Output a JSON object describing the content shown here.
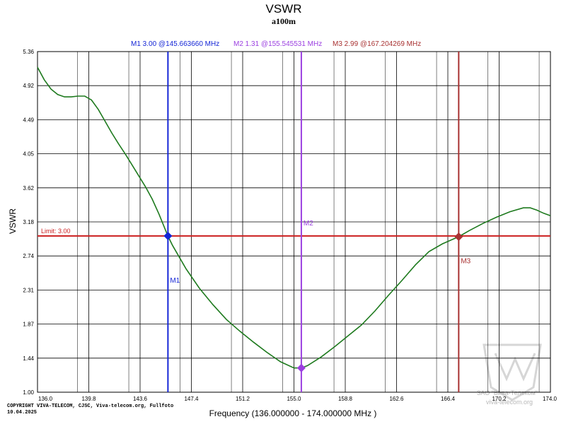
{
  "chart_data": {
    "type": "line",
    "title": "VSWR",
    "subtitle": "a100m",
    "xlabel": "Frequency (136.000000 - 174.000000 MHz )",
    "ylabel": "VSWR",
    "xlim": [
      136.0,
      174.0
    ],
    "ylim": [
      1.0,
      5.36
    ],
    "x_ticks": [
      "136.0",
      "139.8",
      "143.6",
      "147.4",
      "151.2",
      "155.0",
      "158.8",
      "162.6",
      "166.4",
      "170.2",
      "174.0"
    ],
    "y_ticks": [
      "1.00",
      "1.44",
      "1.87",
      "2.31",
      "2.74",
      "3.18",
      "3.62",
      "4.05",
      "4.49",
      "4.92",
      "5.36"
    ],
    "grid": true,
    "series": [
      {
        "name": "VSWR",
        "color": "#1e7a1e",
        "x": [
          136.0,
          136.5,
          137.0,
          137.5,
          138.0,
          138.5,
          139.0,
          139.5,
          140.0,
          140.5,
          141.0,
          141.5,
          142.0,
          142.5,
          143.0,
          143.5,
          144.0,
          144.5,
          145.0,
          145.66,
          146.0,
          147.0,
          148.0,
          149.0,
          150.0,
          151.0,
          152.0,
          153.0,
          154.0,
          155.0,
          155.55,
          156.0,
          157.0,
          158.0,
          159.0,
          160.0,
          161.0,
          162.0,
          163.0,
          164.0,
          165.0,
          166.0,
          167.2,
          168.0,
          169.0,
          170.0,
          171.0,
          172.0,
          172.5,
          173.0,
          173.5,
          174.0
        ],
        "y": [
          5.16,
          5.0,
          4.88,
          4.81,
          4.78,
          4.78,
          4.79,
          4.79,
          4.74,
          4.62,
          4.47,
          4.32,
          4.18,
          4.05,
          3.91,
          3.77,
          3.63,
          3.47,
          3.28,
          3.0,
          2.88,
          2.58,
          2.33,
          2.12,
          1.93,
          1.78,
          1.64,
          1.51,
          1.39,
          1.31,
          1.31,
          1.34,
          1.45,
          1.58,
          1.72,
          1.86,
          2.04,
          2.24,
          2.43,
          2.63,
          2.8,
          2.9,
          2.99,
          3.07,
          3.16,
          3.24,
          3.31,
          3.36,
          3.36,
          3.33,
          3.29,
          3.26
        ]
      }
    ],
    "limit": {
      "label": "Limit: 3.00",
      "value": 3.0,
      "color": "#cc1f1f"
    },
    "markers": [
      {
        "name": "M1",
        "freq": 145.66366,
        "vswr": 3.0,
        "color": "#1526d6",
        "info": "M1  3.00 @145.663660 MHz"
      },
      {
        "name": "M2",
        "freq": 155.545531,
        "vswr": 1.31,
        "color": "#9b3fe0",
        "info": "M2  1.31 @155.545531 MHz"
      },
      {
        "name": "M3",
        "freq": 167.204269,
        "vswr": 2.99,
        "color": "#a83232",
        "info": "M3  2.99 @167.204269 MHz"
      }
    ]
  },
  "footer": {
    "copyright": "COPYRIGHT VIVA-TELECOM, CJSC, Viva-telecom.org, Fullfoto",
    "date": "10.04.2025"
  },
  "watermark": {
    "line1": "ЗАО \"Вива-Телеком\"",
    "line2": "viva-telecom.org"
  }
}
